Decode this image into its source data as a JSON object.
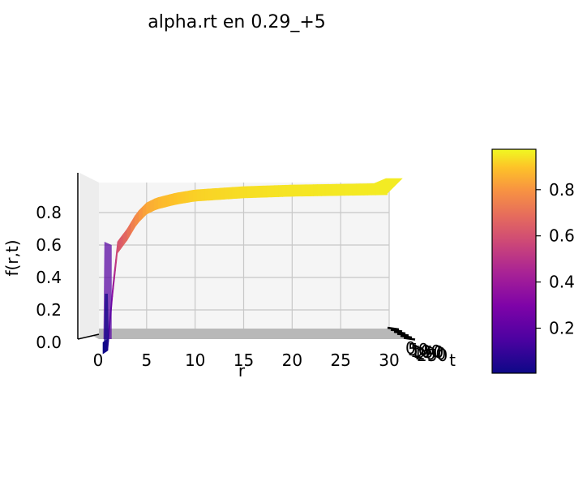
{
  "chart_data": {
    "type": "surface",
    "title": "alpha.rt en 0.29_+5",
    "xlabel": "r",
    "ylabel": "t",
    "zlabel": "f(r,t)",
    "x_ticks": [
      "0",
      "5",
      "10",
      "15",
      "20",
      "25",
      "30"
    ],
    "z_ticks": [
      "0.0",
      "0.2",
      "0.4",
      "0.6",
      "0.8"
    ],
    "t_ticks": [
      "0",
      "50",
      "100",
      "150",
      "200",
      "250"
    ],
    "xlim": [
      -2,
      32
    ],
    "zlim": [
      0,
      1
    ],
    "colormap": "plasma",
    "colorbar_ticks": [
      "0.2",
      "0.4",
      "0.6",
      "0.8"
    ],
    "colorbar_range": [
      0.0,
      1.0
    ],
    "grid": true,
    "profile_r": [
      0,
      0.5,
      1,
      1.5,
      2,
      2.5,
      3,
      4,
      5,
      6,
      8,
      10,
      15,
      20,
      25,
      30
    ],
    "profile_f": [
      0.0,
      0.0,
      0.02,
      0.35,
      0.62,
      0.66,
      0.7,
      0.8,
      0.86,
      0.89,
      0.92,
      0.94,
      0.96,
      0.97,
      0.975,
      0.98
    ]
  },
  "colors": {
    "pane": "#f5f5f5",
    "floor": "#b8b8b8",
    "grid": "#c8c8c8"
  }
}
